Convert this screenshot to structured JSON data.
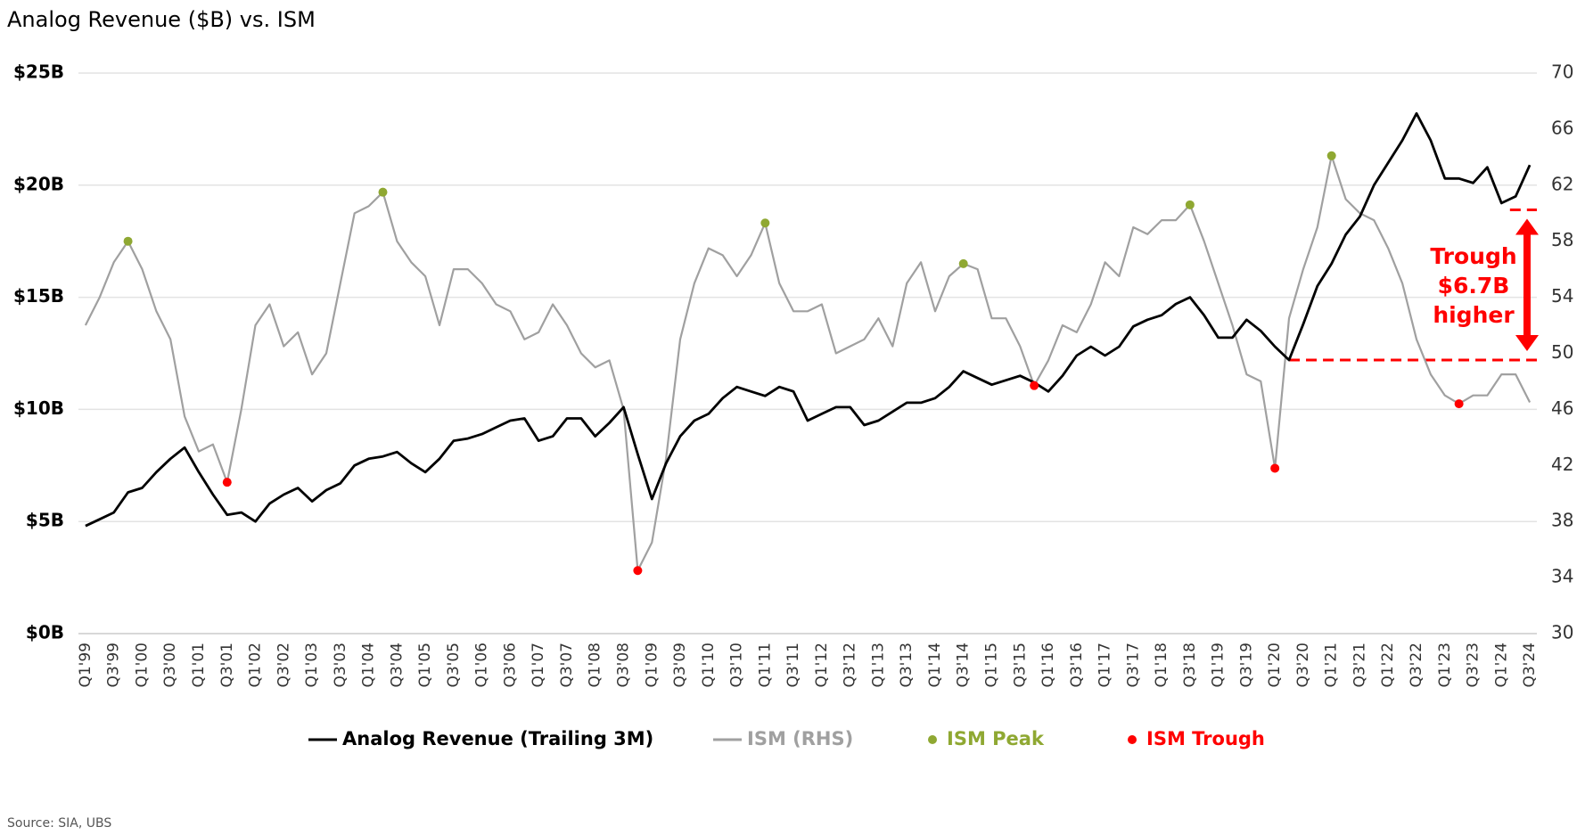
{
  "chart_data": {
    "type": "line",
    "title": "Analog Revenue ($B) vs. ISM",
    "source": "Source: SIA, UBS",
    "categories": [
      "Q1'99",
      null,
      "Q3'99",
      null,
      "Q1'00",
      null,
      "Q3'00",
      null,
      "Q1'01",
      null,
      "Q3'01",
      null,
      "Q1'02",
      null,
      "Q3'02",
      null,
      "Q1'03",
      null,
      "Q3'03",
      null,
      "Q1'04",
      null,
      "Q3'04",
      null,
      "Q1'05",
      null,
      "Q3'05",
      null,
      "Q1'06",
      null,
      "Q3'06",
      null,
      "Q1'07",
      null,
      "Q3'07",
      null,
      "Q1'08",
      null,
      "Q3'08",
      null,
      "Q1'09",
      null,
      "Q3'09",
      null,
      "Q1'10",
      null,
      "Q3'10",
      null,
      "Q1'11",
      null,
      "Q3'11",
      null,
      "Q1'12",
      null,
      "Q3'12",
      null,
      "Q1'13",
      null,
      "Q3'13",
      null,
      "Q1'14",
      null,
      "Q3'14",
      null,
      "Q1'15",
      null,
      "Q3'15",
      null,
      "Q1'16",
      null,
      "Q3'16",
      null,
      "Q1'17",
      null,
      "Q3'17",
      null,
      "Q1'18",
      null,
      "Q3'18",
      null,
      "Q1'19",
      null,
      "Q3'19",
      null,
      "Q1'20",
      null,
      "Q3'20",
      null,
      "Q1'21",
      null,
      "Q3'21",
      null,
      "Q1'22",
      null,
      "Q3'22",
      null,
      "Q1'23",
      null,
      "Q3'23",
      null,
      "Q1'24",
      null,
      "Q3'24"
    ],
    "series": [
      {
        "name": "Analog Revenue (Trailing 3M)",
        "color": "#000000",
        "kind": "line",
        "values": [
          4.8,
          5.1,
          5.4,
          6.3,
          6.5,
          7.2,
          7.8,
          8.3,
          7.2,
          6.2,
          5.3,
          5.4,
          5.0,
          5.8,
          6.2,
          6.5,
          5.9,
          6.4,
          6.7,
          7.5,
          7.8,
          7.9,
          8.1,
          7.6,
          7.2,
          7.8,
          8.6,
          8.7,
          8.9,
          9.2,
          9.5,
          9.6,
          8.6,
          8.8,
          9.6,
          9.6,
          8.8,
          9.4,
          10.1,
          8.0,
          6.0,
          7.6,
          8.8,
          9.5,
          9.8,
          10.5,
          11.0,
          10.8,
          10.6,
          11.0,
          10.8,
          9.5,
          9.8,
          10.1,
          10.1,
          9.3,
          9.5,
          9.9,
          10.3,
          10.3,
          10.5,
          11.0,
          11.7,
          11.4,
          11.1,
          11.3,
          11.5,
          11.2,
          10.8,
          11.5,
          12.4,
          12.8,
          12.4,
          12.8,
          13.7,
          14.0,
          14.2,
          14.7,
          15.0,
          14.2,
          13.2,
          13.2,
          14.0,
          13.5,
          12.8,
          12.2,
          13.8,
          15.5,
          16.5,
          17.8,
          18.6,
          20.0,
          21.0,
          22.0,
          23.2,
          22.0,
          20.3,
          20.3,
          20.1,
          20.8,
          19.2,
          19.5,
          20.9
        ]
      },
      {
        "name": "ISM (RHS)",
        "color": "#a0a0a0",
        "kind": "line",
        "axis": "y2",
        "values": [
          52,
          54,
          56.5,
          58,
          56,
          53,
          51,
          45.5,
          43,
          43.5,
          40.8,
          46,
          52,
          53.5,
          50.5,
          51.5,
          48.5,
          50,
          55,
          60,
          60.5,
          61.5,
          58,
          56.5,
          55.5,
          52,
          56,
          56,
          55,
          53.5,
          53,
          51,
          51.5,
          53.5,
          52,
          50,
          49,
          49.5,
          46,
          34.5,
          36.5,
          42.5,
          51,
          55,
          57.5,
          57,
          55.5,
          57,
          59.3,
          55,
          53,
          53,
          53.5,
          50,
          50.5,
          51,
          52.5,
          50.5,
          55,
          56.5,
          53,
          55.5,
          56.4,
          56,
          52.5,
          52.5,
          50.5,
          47.7,
          49.5,
          52,
          51.5,
          53.5,
          56.5,
          55.5,
          59,
          58.5,
          59.5,
          59.5,
          60.6,
          58,
          55,
          52,
          48.5,
          48,
          41.8,
          52.5,
          56,
          59,
          64.1,
          61,
          60,
          59.5,
          57.5,
          55,
          51,
          48.5,
          47,
          46.4,
          47,
          47,
          48.5,
          48.5,
          46.5
        ]
      },
      {
        "name": "ISM Peak",
        "color": "#8fa832",
        "kind": "dot",
        "axis": "y2",
        "values": [
          null,
          null,
          null,
          58,
          null,
          null,
          null,
          null,
          null,
          null,
          null,
          null,
          null,
          null,
          null,
          null,
          null,
          null,
          null,
          null,
          null,
          61.5,
          null,
          null,
          null,
          null,
          null,
          null,
          null,
          null,
          null,
          null,
          null,
          null,
          null,
          null,
          null,
          null,
          null,
          null,
          null,
          null,
          null,
          null,
          null,
          null,
          null,
          null,
          59.3,
          null,
          null,
          null,
          null,
          null,
          null,
          null,
          null,
          null,
          null,
          null,
          null,
          null,
          56.4,
          null,
          null,
          null,
          null,
          null,
          null,
          null,
          null,
          null,
          null,
          null,
          null,
          null,
          null,
          null,
          60.6,
          null,
          null,
          null,
          null,
          null,
          null,
          null,
          null,
          null,
          64.1,
          null,
          null,
          null,
          null,
          null,
          null,
          null,
          null,
          null,
          null,
          null,
          null,
          null,
          null
        ]
      },
      {
        "name": "ISM Trough",
        "color": "#ff0000",
        "kind": "dot",
        "axis": "y2",
        "values": [
          null,
          null,
          null,
          null,
          null,
          null,
          null,
          null,
          null,
          null,
          40.8,
          null,
          null,
          null,
          null,
          null,
          null,
          null,
          null,
          null,
          null,
          null,
          null,
          null,
          null,
          null,
          null,
          null,
          null,
          null,
          null,
          null,
          null,
          null,
          null,
          null,
          null,
          null,
          null,
          34.5,
          null,
          null,
          null,
          null,
          null,
          null,
          null,
          null,
          null,
          null,
          null,
          null,
          null,
          null,
          null,
          null,
          null,
          null,
          null,
          null,
          null,
          null,
          null,
          null,
          null,
          null,
          null,
          47.7,
          null,
          null,
          null,
          null,
          null,
          null,
          null,
          null,
          null,
          null,
          null,
          null,
          null,
          null,
          null,
          null,
          41.8,
          null,
          null,
          null,
          null,
          null,
          null,
          null,
          null,
          null,
          null,
          null,
          null,
          46.4,
          null,
          null,
          null,
          null,
          null
        ]
      }
    ],
    "ylim": [
      0,
      25
    ],
    "yticks": [
      {
        "value": 0,
        "label": "$0B"
      },
      {
        "value": 5,
        "label": "$5B"
      },
      {
        "value": 10,
        "label": "$10B"
      },
      {
        "value": 15,
        "label": "$15B"
      },
      {
        "value": 20,
        "label": "$20B"
      },
      {
        "value": 25,
        "label": "$25B"
      }
    ],
    "y2lim": [
      30,
      70
    ],
    "y2ticks": [
      30,
      34,
      38,
      42,
      46,
      50,
      54,
      58,
      62,
      66,
      70
    ],
    "grid": true,
    "reference_lines": [
      12.2,
      18.9
    ],
    "annotation": {
      "text": [
        "Trough",
        "$6.7B",
        "higher"
      ],
      "color": "#ff0000"
    }
  }
}
